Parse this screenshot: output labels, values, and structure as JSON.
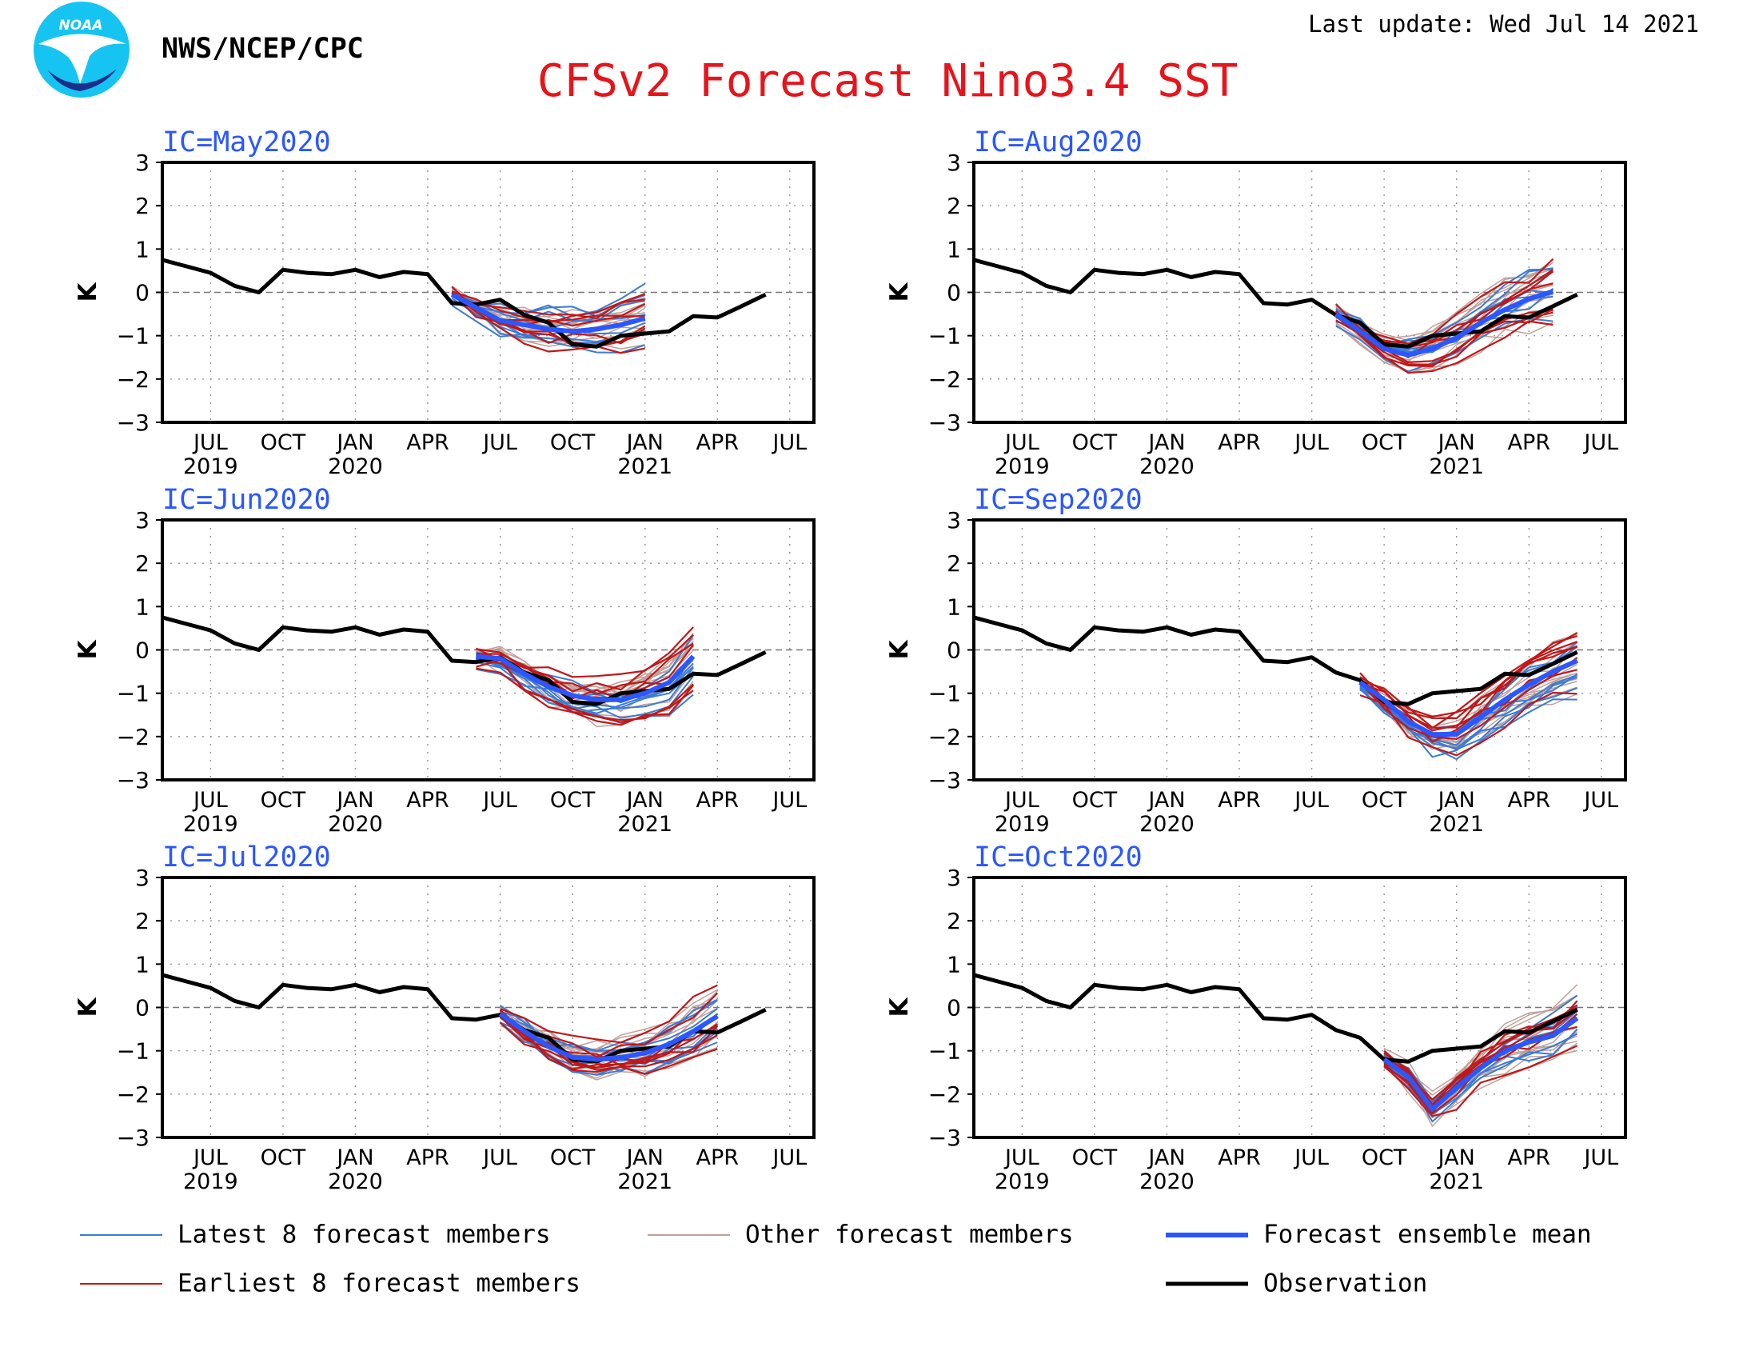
{
  "header": {
    "agency": "NWS/NCEP/CPC",
    "logo_text": "NOAA",
    "title": "CFSv2 Forecast Nino3.4 SST",
    "last_update": "Last update: Wed Jul 14 2021"
  },
  "colors": {
    "title": "#e8141b",
    "ic_label": "#2a57ff",
    "latest": "#3a7bd5",
    "earliest": "#c01818",
    "other": "#c0a09a",
    "mean": "#2a57ff",
    "observation": "#000000"
  },
  "legend": {
    "latest": "Latest 8 forecast members",
    "other": "Other forecast members",
    "mean": "Forecast ensemble mean",
    "earliest": "Earliest 8 forecast members",
    "observation": "Observation"
  },
  "chart_data": {
    "type": "line",
    "ylabel": "K",
    "ylim": [
      -3,
      3
    ],
    "yticks": [
      -3,
      -2,
      -1,
      0,
      1,
      2,
      3
    ],
    "x_start": "2019-05",
    "x_end": "2021-08",
    "month_ticks": [
      "JUL",
      "OCT",
      "JAN",
      "APR",
      "JUL",
      "OCT",
      "JAN",
      "APR",
      "JUL"
    ],
    "month_tick_dates": [
      "2019-07",
      "2019-10",
      "2020-01",
      "2020-04",
      "2020-07",
      "2020-10",
      "2021-01",
      "2021-04",
      "2021-07"
    ],
    "year_labels": [
      {
        "label": "2019",
        "at": "2019-07"
      },
      {
        "label": "2020",
        "at": "2020-01"
      },
      {
        "label": "2021",
        "at": "2021-01"
      }
    ],
    "grid": "dotted",
    "observation": {
      "name": "Observation",
      "dates": [
        "2019-05",
        "2019-06",
        "2019-07",
        "2019-08",
        "2019-09",
        "2019-10",
        "2019-11",
        "2019-12",
        "2020-01",
        "2020-02",
        "2020-03",
        "2020-04",
        "2020-05",
        "2020-06",
        "2020-07",
        "2020-08",
        "2020-09",
        "2020-10",
        "2020-11",
        "2020-12",
        "2021-01",
        "2021-02",
        "2021-03",
        "2021-04",
        "2021-05",
        "2021-06"
      ],
      "values": [
        0.75,
        0.6,
        0.45,
        0.15,
        0.0,
        0.52,
        0.45,
        0.42,
        0.52,
        0.35,
        0.47,
        0.42,
        -0.25,
        -0.28,
        -0.17,
        -0.52,
        -0.7,
        -1.2,
        -1.25,
        -1.0,
        -0.95,
        -0.9,
        -0.55,
        -0.58,
        -0.32,
        -0.05
      ]
    },
    "panels": [
      {
        "ic": "IC=May2020",
        "start": "2020-05",
        "mean": [
          -0.05,
          -0.35,
          -0.65,
          -0.75,
          -0.85,
          -0.9,
          -0.85,
          -0.75,
          -0.6
        ]
      },
      {
        "ic": "IC=Aug2020",
        "start": "2020-08",
        "mean": [
          -0.5,
          -0.9,
          -1.3,
          -1.45,
          -1.3,
          -1.05,
          -0.7,
          -0.4,
          -0.15,
          0.02
        ]
      },
      {
        "ic": "IC=Jun2020",
        "start": "2020-06",
        "mean": [
          -0.15,
          -0.2,
          -0.55,
          -0.85,
          -1.05,
          -1.15,
          -1.15,
          -1.0,
          -0.75,
          -0.15
        ]
      },
      {
        "ic": "IC=Sep2020",
        "start": "2020-09",
        "mean": [
          -0.75,
          -1.15,
          -1.65,
          -1.95,
          -1.95,
          -1.55,
          -1.15,
          -0.8,
          -0.5,
          -0.25
        ]
      },
      {
        "ic": "IC=Jul2020",
        "start": "2020-07",
        "mean": [
          -0.15,
          -0.55,
          -0.9,
          -1.15,
          -1.2,
          -1.15,
          -1.05,
          -0.85,
          -0.55,
          -0.2
        ]
      },
      {
        "ic": "IC=Oct2020",
        "start": "2020-10",
        "mean": [
          -1.2,
          -1.6,
          -2.35,
          -1.85,
          -1.4,
          -1.0,
          -0.8,
          -0.65,
          -0.25
        ]
      }
    ]
  }
}
